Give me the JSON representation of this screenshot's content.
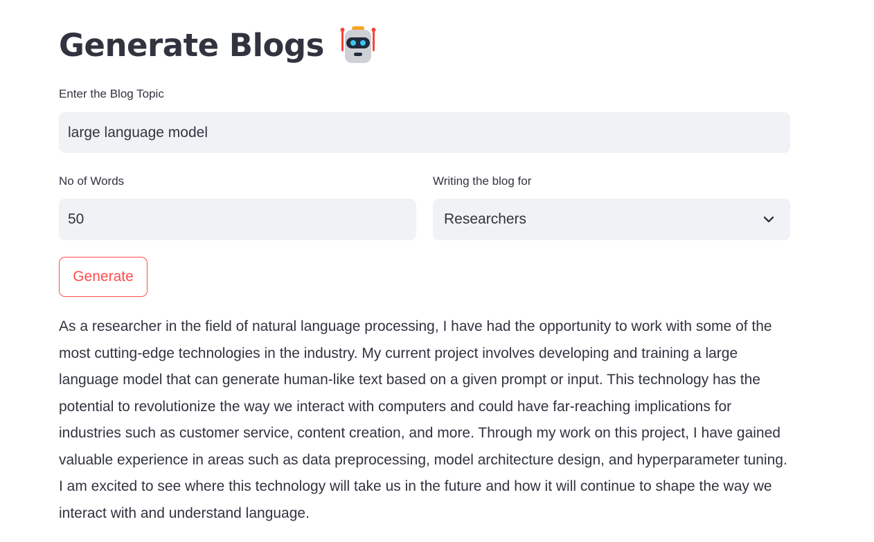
{
  "header": {
    "title": "Generate Blogs"
  },
  "topic": {
    "label": "Enter the Blog Topic",
    "value": "large language model"
  },
  "words": {
    "label": "No of Words",
    "value": "50"
  },
  "audience": {
    "label": "Writing the blog for",
    "selected": "Researchers"
  },
  "actions": {
    "generate_label": "Generate"
  },
  "output": {
    "text": "As a researcher in the field of natural language processing, I have had the opportunity to work with some of the most cutting-edge technologies in the industry. My current project involves developing and training a large language model that can generate human-like text based on a given prompt or input. This technology has the potential to revolutionize the way we interact with computers and could have far-reaching implications for industries such as customer service, content creation, and more. Through my work on this project, I have gained valuable experience in areas such as data preprocessing, model architecture design, and hyperparameter tuning. I am excited to see where this technology will take us in the future and how it will continue to shape the way we interact with and understand language."
  },
  "colors": {
    "accent": "#ff4b4b",
    "input_bg": "#f0f2f6",
    "text": "#31333f"
  },
  "icons": {
    "title_icon": "robot-icon",
    "select_icon": "chevron-down-icon"
  }
}
